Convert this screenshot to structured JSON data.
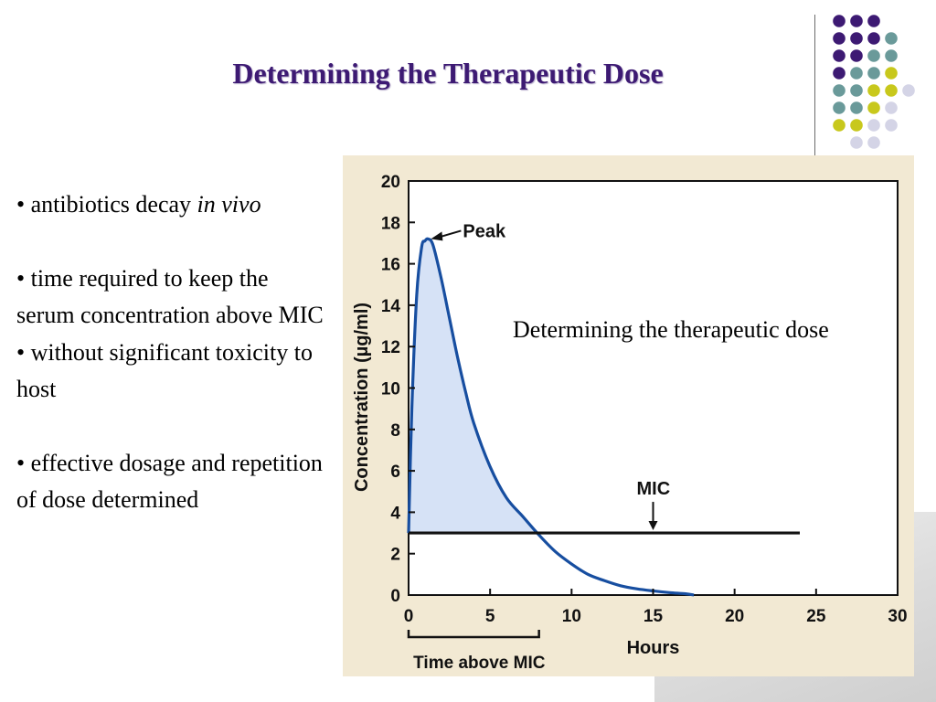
{
  "slide": {
    "title": "Determining the Therapeutic Dose",
    "caption": "Determining the therapeutic dose",
    "bullets": {
      "b1_text": "• antibiotics decay ",
      "b1_italic": "in vivo",
      "b2": "• time required to keep the serum concentration above MIC",
      "b3": "• without significant toxicity to host",
      "b4": "• effective dosage and repetition of dose determined"
    },
    "colors": {
      "title": "#3d1a73",
      "dot_purple": "#3d1a73",
      "dot_teal": "#6a9a9a",
      "dot_yellow": "#c8c81c",
      "dot_lavender": "#d4d4e6"
    }
  },
  "chart_data": {
    "type": "line",
    "title": "",
    "xlabel": "Hours",
    "ylabel": "Concentration (µg/ml)",
    "xlim": [
      0,
      30
    ],
    "ylim": [
      0,
      20
    ],
    "x_ticks": [
      0,
      5,
      10,
      15,
      20,
      25,
      30
    ],
    "y_ticks": [
      0,
      2,
      4,
      6,
      8,
      10,
      12,
      14,
      16,
      18,
      20
    ],
    "grid": false,
    "series": [
      {
        "x": [
          0,
          0.2,
          0.5,
          0.8,
          1.0,
          1.2,
          1.5,
          2.0,
          2.5,
          3.0,
          3.5,
          4.0,
          5.0,
          6.0,
          7.0,
          8.0,
          9.0,
          10.0,
          11.0,
          12.0,
          13.0,
          14.0,
          15.0,
          16.0,
          17.0,
          17.5
        ],
        "y": [
          3.0,
          9.0,
          14.5,
          16.8,
          17.1,
          17.2,
          16.9,
          15.3,
          13.4,
          11.5,
          9.8,
          8.3,
          6.2,
          4.7,
          3.8,
          2.9,
          2.1,
          1.5,
          1.0,
          0.7,
          0.45,
          0.3,
          0.2,
          0.12,
          0.06,
          0.0
        ]
      }
    ],
    "mic": {
      "value": 3,
      "x_end": 24,
      "label": "MIC",
      "arrow_x": 15
    },
    "peak": {
      "x": 1.2,
      "y": 17.2,
      "label": "Peak"
    },
    "time_above_mic": {
      "x_start": 0,
      "x_end": 8,
      "label": "Time above MIC"
    },
    "fill_color": "#d6e2f6",
    "line_color": "#174ea0"
  }
}
